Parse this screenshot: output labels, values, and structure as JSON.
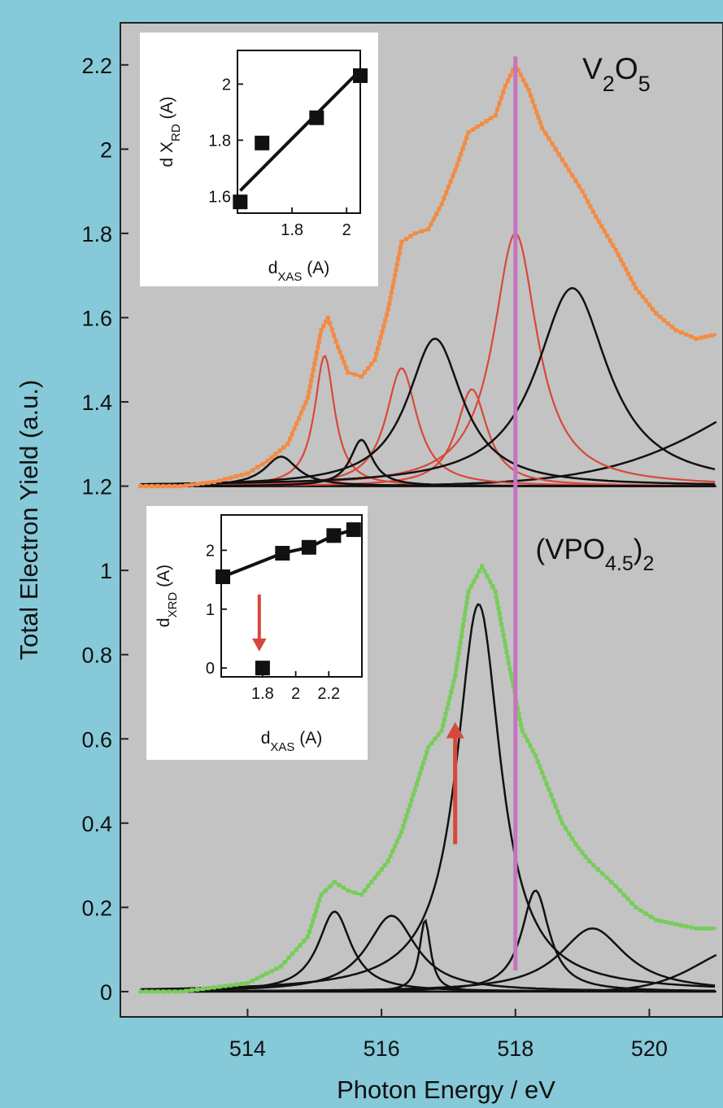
{
  "colors": {
    "page_bg": "#86c9d9",
    "plot_bg": "#c3c3c3",
    "envelope_top": "#f28c45",
    "envelope_bottom": "#78cd5a",
    "red_peaks": "#d9473b",
    "black_peaks": "#111111",
    "marker_line": "#c474c0",
    "arrow": "#d9473b",
    "inset_bg": "#ffffff"
  },
  "chart_data": [
    {
      "type": "line",
      "xlabel": "Photon Energy / eV",
      "ylabel": "Total Electron Yield (a.u.)",
      "xlim": [
        512.1,
        521.1
      ],
      "ylim": [
        -0.06,
        2.3
      ],
      "xticks": [
        514,
        516,
        518,
        520
      ],
      "xtick_labels": [
        "514",
        "516",
        "518",
        "520"
      ],
      "yticks": [
        0,
        0.2,
        0.4,
        0.6,
        0.8,
        1.0,
        1.2,
        1.4,
        1.6,
        1.8,
        2.0,
        2.2
      ],
      "ytick_labels": [
        "0",
        "0.2",
        "0.4",
        "0.6",
        "0.8",
        "1",
        "1.2",
        "1.4",
        "1.6",
        "1.8",
        "2",
        "2.2"
      ],
      "vline_x": 518.0,
      "vline_range": [
        0.05,
        2.22
      ],
      "annotations": [
        {
          "base": "V",
          "sub1": "2",
          "mid": "O",
          "sub2": "5",
          "x": 519.0,
          "y": 2.19
        },
        {
          "base": "(VPO",
          "sub1": "4.5",
          "mid": ")",
          "sub2": "2",
          "x": 518.3,
          "y": 1.05
        }
      ],
      "arrow": {
        "x": 517.1,
        "y_from": 0.35,
        "y_to": 0.64
      },
      "top_panel": {
        "baseline": 1.2,
        "envelope": {
          "x": [
            512.4,
            513.0,
            513.5,
            514.0,
            514.3,
            514.6,
            514.9,
            515.1,
            515.2,
            515.35,
            515.5,
            515.7,
            515.9,
            516.1,
            516.3,
            516.5,
            516.7,
            516.9,
            517.1,
            517.3,
            517.5,
            517.7,
            517.85,
            518.0,
            518.2,
            518.4,
            518.6,
            518.8,
            519.0,
            519.2,
            519.5,
            519.8,
            520.1,
            520.4,
            520.7,
            521.0
          ],
          "y": [
            1.2,
            1.2,
            1.21,
            1.23,
            1.26,
            1.3,
            1.41,
            1.57,
            1.6,
            1.53,
            1.47,
            1.46,
            1.5,
            1.62,
            1.78,
            1.8,
            1.81,
            1.87,
            1.95,
            2.04,
            2.06,
            2.08,
            2.15,
            2.2,
            2.14,
            2.05,
            2.0,
            1.95,
            1.9,
            1.84,
            1.76,
            1.67,
            1.61,
            1.57,
            1.55,
            1.56
          ]
        },
        "red_peaks": [
          {
            "center": 515.15,
            "height": 0.31,
            "width": 0.18
          },
          {
            "center": 516.3,
            "height": 0.28,
            "width": 0.28
          },
          {
            "center": 517.35,
            "height": 0.23,
            "width": 0.28
          },
          {
            "center": 518.0,
            "height": 0.6,
            "width": 0.4
          }
        ],
        "black_peaks": [
          {
            "center": 514.5,
            "height": 0.07,
            "width": 0.3
          },
          {
            "center": 515.7,
            "height": 0.11,
            "width": 0.2
          },
          {
            "center": 516.8,
            "height": 0.35,
            "width": 0.5
          },
          {
            "center": 518.85,
            "height": 0.47,
            "width": 0.65
          }
        ],
        "step": {
          "center": 521.4,
          "height": 0.38,
          "width": 2.0
        }
      },
      "bottom_panel": {
        "baseline": 0,
        "envelope": {
          "x": [
            512.4,
            513.0,
            513.5,
            514.0,
            514.5,
            514.9,
            515.1,
            515.3,
            515.5,
            515.7,
            515.9,
            516.1,
            516.3,
            516.5,
            516.7,
            516.9,
            517.1,
            517.3,
            517.5,
            517.7,
            517.9,
            518.1,
            518.3,
            518.5,
            518.7,
            518.9,
            519.1,
            519.3,
            519.5,
            519.8,
            520.1,
            520.4,
            520.7,
            521.0
          ],
          "y": [
            0.0,
            0.0,
            0.01,
            0.02,
            0.06,
            0.13,
            0.23,
            0.26,
            0.24,
            0.23,
            0.27,
            0.31,
            0.38,
            0.48,
            0.58,
            0.62,
            0.75,
            0.95,
            1.01,
            0.95,
            0.78,
            0.62,
            0.56,
            0.48,
            0.4,
            0.35,
            0.31,
            0.28,
            0.25,
            0.2,
            0.17,
            0.16,
            0.15,
            0.15
          ]
        },
        "black_peaks": [
          {
            "center": 515.3,
            "height": 0.19,
            "width": 0.3
          },
          {
            "center": 516.15,
            "height": 0.18,
            "width": 0.45
          },
          {
            "center": 516.65,
            "height": 0.17,
            "width": 0.1
          },
          {
            "center": 517.45,
            "height": 0.92,
            "width": 0.4
          },
          {
            "center": 518.3,
            "height": 0.24,
            "width": 0.25
          },
          {
            "center": 519.15,
            "height": 0.15,
            "width": 0.6
          }
        ],
        "step": {
          "center": 520.8,
          "height": 0.14,
          "width": 0.8
        }
      }
    },
    {
      "type": "scatter",
      "inset": "top",
      "xlabel_base": "d",
      "xlabel_sub": "XAS",
      "xlabel_tail": "(A)",
      "ylabel_base": "d X",
      "ylabel_sub": "RD",
      "ylabel_tail": "(A)",
      "xlim": [
        1.6,
        2.05
      ],
      "ylim": [
        1.54,
        2.12
      ],
      "xticks": [
        1.8,
        2.0
      ],
      "xtick_labels": [
        "1.8",
        "2"
      ],
      "yticks": [
        1.6,
        1.8,
        2.0
      ],
      "ytick_labels": [
        "1.6",
        "1.8",
        "2"
      ],
      "x": [
        1.61,
        1.69,
        1.89,
        2.05
      ],
      "y": [
        1.58,
        1.79,
        1.88,
        2.03
      ],
      "fit": {
        "x": [
          1.61,
          2.05
        ],
        "y": [
          1.62,
          2.05
        ]
      }
    },
    {
      "type": "scatter",
      "inset": "bottom",
      "xlabel_base": "d",
      "xlabel_sub": "XAS",
      "xlabel_tail": "(A)",
      "ylabel_base": "d",
      "ylabel_sub": "XRD",
      "ylabel_tail": "(A)",
      "xlim": [
        1.55,
        2.4
      ],
      "ylim": [
        -0.15,
        2.6
      ],
      "xticks": [
        1.8,
        2.0,
        2.2
      ],
      "xtick_labels": [
        "1.8",
        "2",
        "2.2"
      ],
      "yticks": [
        0,
        1,
        2
      ],
      "ytick_labels": [
        "0",
        "1",
        "2"
      ],
      "x": [
        1.56,
        1.8,
        1.92,
        2.08,
        2.23,
        2.35
      ],
      "y": [
        1.55,
        0.0,
        1.95,
        2.05,
        2.25,
        2.35
      ],
      "fit": {
        "x": [
          1.56,
          1.92,
          2.08,
          2.23,
          2.35
        ],
        "y": [
          1.55,
          1.95,
          2.05,
          2.25,
          2.35
        ]
      },
      "arrow": {
        "x": 1.78,
        "y_from": 1.25,
        "y_to": 0.28
      }
    }
  ]
}
